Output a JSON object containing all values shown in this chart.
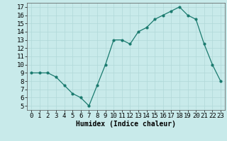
{
  "x": [
    0,
    1,
    2,
    3,
    4,
    5,
    6,
    7,
    8,
    9,
    10,
    11,
    12,
    13,
    14,
    15,
    16,
    17,
    18,
    19,
    20,
    21,
    22,
    23
  ],
  "y": [
    9,
    9,
    9,
    8.5,
    7.5,
    6.5,
    6,
    5,
    7.5,
    10,
    13,
    13,
    12.5,
    14,
    14.5,
    15.5,
    16,
    16.5,
    17,
    16,
    15.5,
    12.5,
    10,
    8
  ],
  "line_color": "#1a7a6e",
  "marker_color": "#1a7a6e",
  "bg_color": "#c8eaea",
  "grid_color": "#b0d8d8",
  "xlabel": "Humidex (Indice chaleur)",
  "xlim": [
    -0.5,
    23.5
  ],
  "ylim": [
    4.5,
    17.5
  ],
  "yticks": [
    5,
    6,
    7,
    8,
    9,
    10,
    11,
    12,
    13,
    14,
    15,
    16,
    17
  ],
  "xticks": [
    0,
    1,
    2,
    3,
    4,
    5,
    6,
    7,
    8,
    9,
    10,
    11,
    12,
    13,
    14,
    15,
    16,
    17,
    18,
    19,
    20,
    21,
    22,
    23
  ],
  "xlabel_fontsize": 7,
  "tick_fontsize": 6.5
}
